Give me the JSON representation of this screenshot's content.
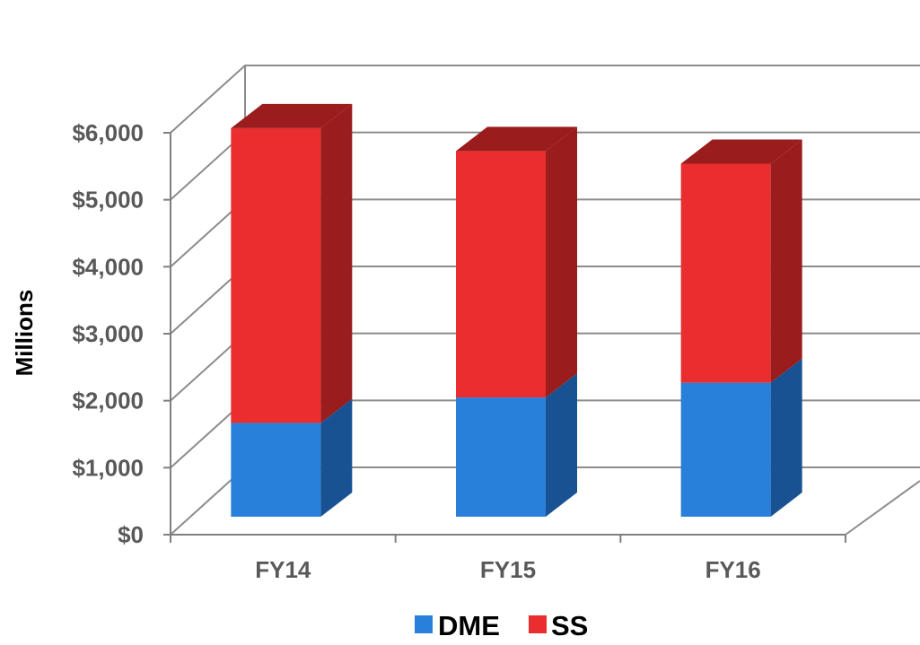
{
  "chart_data": {
    "type": "bar",
    "stacked": true,
    "three_d": true,
    "title": "",
    "xlabel": "",
    "ylabel": "Millions",
    "categories": [
      "FY14",
      "FY15",
      "FY16"
    ],
    "series": [
      {
        "name": "DME",
        "values": [
          1400,
          1780,
          2000
        ],
        "color": "#2880DB",
        "side_color": "#185293"
      },
      {
        "name": "SS",
        "values": [
          4400,
          3680,
          3270
        ],
        "color": "#EA2D2E",
        "side_color": "#9A1C1D"
      }
    ],
    "ylim": [
      0,
      6000
    ],
    "yticks": [
      0,
      1000,
      2000,
      3000,
      4000,
      5000,
      6000
    ],
    "ytick_labels": [
      "$0",
      "$1,000",
      "$2,000",
      "$3,000",
      "$4,000",
      "$5,000",
      "$6,000"
    ],
    "grid": true,
    "legend_position": "bottom",
    "colors": {
      "gridline": "#8C8C8C",
      "axis": "#7F7F7F",
      "tick_text": "#595959"
    }
  }
}
